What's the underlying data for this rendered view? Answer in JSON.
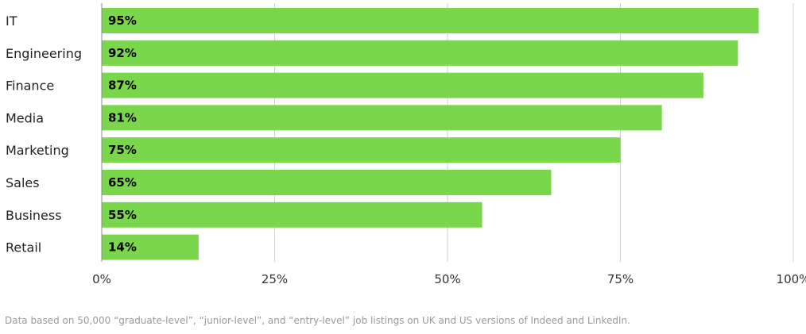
{
  "chart_data": {
    "type": "bar",
    "orientation": "horizontal",
    "categories": [
      "IT",
      "Engineering",
      "Finance",
      "Media",
      "Marketing",
      "Sales",
      "Business",
      "Retail"
    ],
    "values": [
      95,
      92,
      87,
      81,
      75,
      65,
      55,
      14
    ],
    "data_labels": [
      "95%",
      "92%",
      "87%",
      "81%",
      "75%",
      "65%",
      "55%",
      "14%"
    ],
    "xlim": [
      0,
      100
    ],
    "x_ticks": [
      0,
      25,
      50,
      75,
      100
    ],
    "x_tick_labels": [
      "0%",
      "25%",
      "50%",
      "75%",
      "100%"
    ],
    "grid": true,
    "title": "",
    "xlabel": "",
    "ylabel": ""
  },
  "footnote": "Data based on 50,000 “graduate-level”, “junior-level”, and “entry-level” job listings on UK and US versions of Indeed and LinkedIn.",
  "colors": {
    "bar": "#7ad64a",
    "grid": "#d0d0d0",
    "axis": "#888888"
  }
}
